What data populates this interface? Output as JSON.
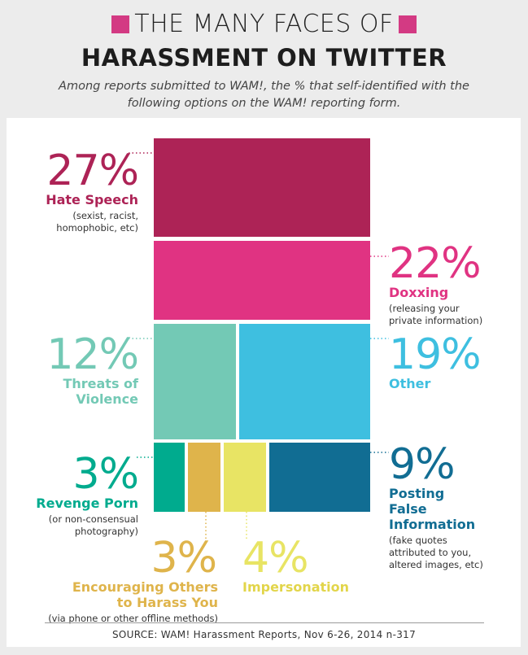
{
  "header": {
    "title_line1": "THE MANY FACES OF",
    "title_line2": "HARASSMENT ON TWITTER",
    "subtitle": "Among reports submitted to WAM!, the % that self-identified with the following options on the WAM! reporting form.",
    "accent_color": "#d33a83"
  },
  "footer": {
    "source": "SOURCE: WAM! Harassment Reports, Nov 6-26, 2014 n-317"
  },
  "chart_data": {
    "type": "treemap",
    "title": "THE MANY FACES OF HARASSMENT ON TWITTER",
    "unit": "%",
    "categories": [
      {
        "name": "Hate Speech",
        "value": 27,
        "pct_label": "27%",
        "note": "(sexist, racist, homophobic, etc)",
        "color": "#ad2356"
      },
      {
        "name": "Doxxing",
        "value": 22,
        "pct_label": "22%",
        "note": "(releasing your private information)",
        "color": "#e03382"
      },
      {
        "name": "Threats of Violence",
        "value": 12,
        "pct_label": "12%",
        "note": "",
        "color": "#73c9b5"
      },
      {
        "name": "Other",
        "value": 19,
        "pct_label": "19%",
        "note": "",
        "color": "#3ebfe0"
      },
      {
        "name": "Revenge Porn",
        "value": 3,
        "pct_label": "3%",
        "note": "(or non-consensual photography)",
        "color": "#00ab8e"
      },
      {
        "name": "Encouraging Others to Harass You",
        "value": 3,
        "pct_label": "3%",
        "note": "(via phone or other offline methods)",
        "color": "#dfb44b"
      },
      {
        "name": "Impersonation",
        "value": 4,
        "pct_label": "4%",
        "note": "",
        "color": "#e8e464"
      },
      {
        "name": "Posting False Information",
        "value": 9,
        "pct_label": "9%",
        "note": "(fake quotes attributed to you, altered images, etc)",
        "color": "#116d93"
      }
    ]
  }
}
